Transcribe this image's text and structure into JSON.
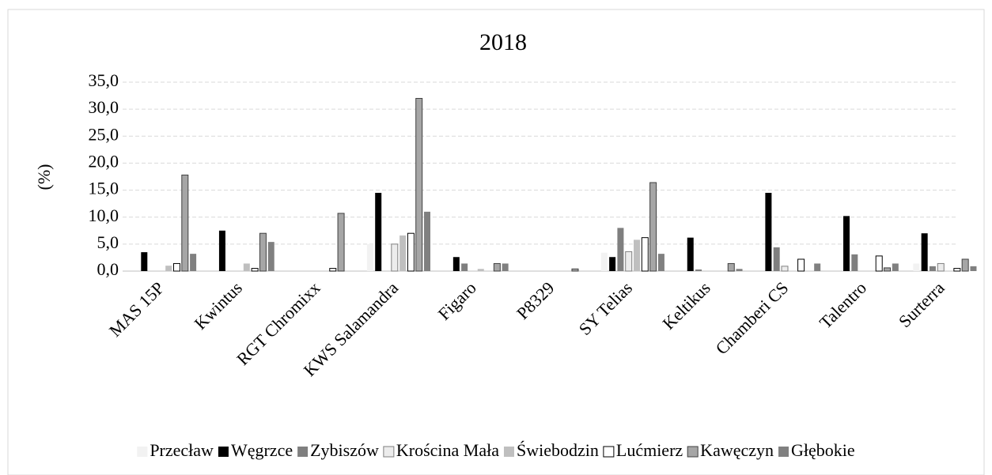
{
  "chart_data": {
    "type": "bar",
    "title": "2018",
    "y_label": "(%)",
    "categories": [
      "MAS 15P",
      "Kwintus",
      "RGT Chromixx",
      "KWS Salamandra",
      "Figaro",
      "P8329",
      "SY Telias",
      "Keltikus",
      "Chamberi CS",
      "Talentro",
      "Surterra"
    ],
    "series": [
      {
        "name": "Przecław",
        "color": "#f2f2f2",
        "values": [
          0,
          0,
          0,
          5.0,
          0,
          0,
          3.4,
          0,
          0,
          0,
          1.4
        ]
      },
      {
        "name": "Węgrzce",
        "color": "#000000",
        "values": [
          3.5,
          7.5,
          0,
          14.5,
          2.6,
          0,
          2.6,
          6.2,
          14.5,
          10.2,
          7.0
        ]
      },
      {
        "name": "Zybiszów",
        "color": "#7f7f7f",
        "values": [
          0,
          0,
          0,
          0,
          1.4,
          0,
          8.0,
          0.3,
          4.4,
          3.1,
          0.9
        ]
      },
      {
        "name": "Krościna Mała",
        "color": "#ececec",
        "values": [
          0,
          0,
          0,
          5.0,
          0,
          0,
          3.6,
          0,
          0.9,
          0,
          1.4
        ]
      },
      {
        "name": "Świebodzin",
        "color": "#bfbfbf",
        "values": [
          1.0,
          1.4,
          0,
          6.6,
          0.4,
          0,
          5.8,
          0,
          0,
          0,
          0
        ]
      },
      {
        "name": "Lućmierz",
        "color": "#ffffff",
        "values": [
          1.4,
          0.5,
          0.5,
          7.0,
          0,
          0,
          6.2,
          0,
          2.2,
          2.8,
          0.5
        ]
      },
      {
        "name": "Kawęczyn",
        "color": "#a6a6a6",
        "values": [
          17.8,
          7.0,
          10.7,
          32.0,
          1.4,
          0.4,
          16.4,
          1.4,
          0,
          0.6,
          2.2
        ]
      },
      {
        "name": "Głębokie",
        "color": "#808080",
        "values": [
          3.2,
          5.4,
          0,
          11.0,
          1.4,
          0,
          3.2,
          0.4,
          1.4,
          1.4,
          0.9
        ]
      }
    ],
    "ylim": [
      0,
      35
    ],
    "yticks": [
      {
        "value": 0,
        "label": "0,0"
      },
      {
        "value": 5,
        "label": "5,0"
      },
      {
        "value": 10,
        "label": "10,0"
      },
      {
        "value": 15,
        "label": "15,0"
      },
      {
        "value": 20,
        "label": "20,0"
      },
      {
        "value": 25,
        "label": "25,0"
      },
      {
        "value": 30,
        "label": "30,0"
      },
      {
        "value": 35,
        "label": "35,0"
      }
    ],
    "grid": true,
    "legend": "bottom"
  }
}
